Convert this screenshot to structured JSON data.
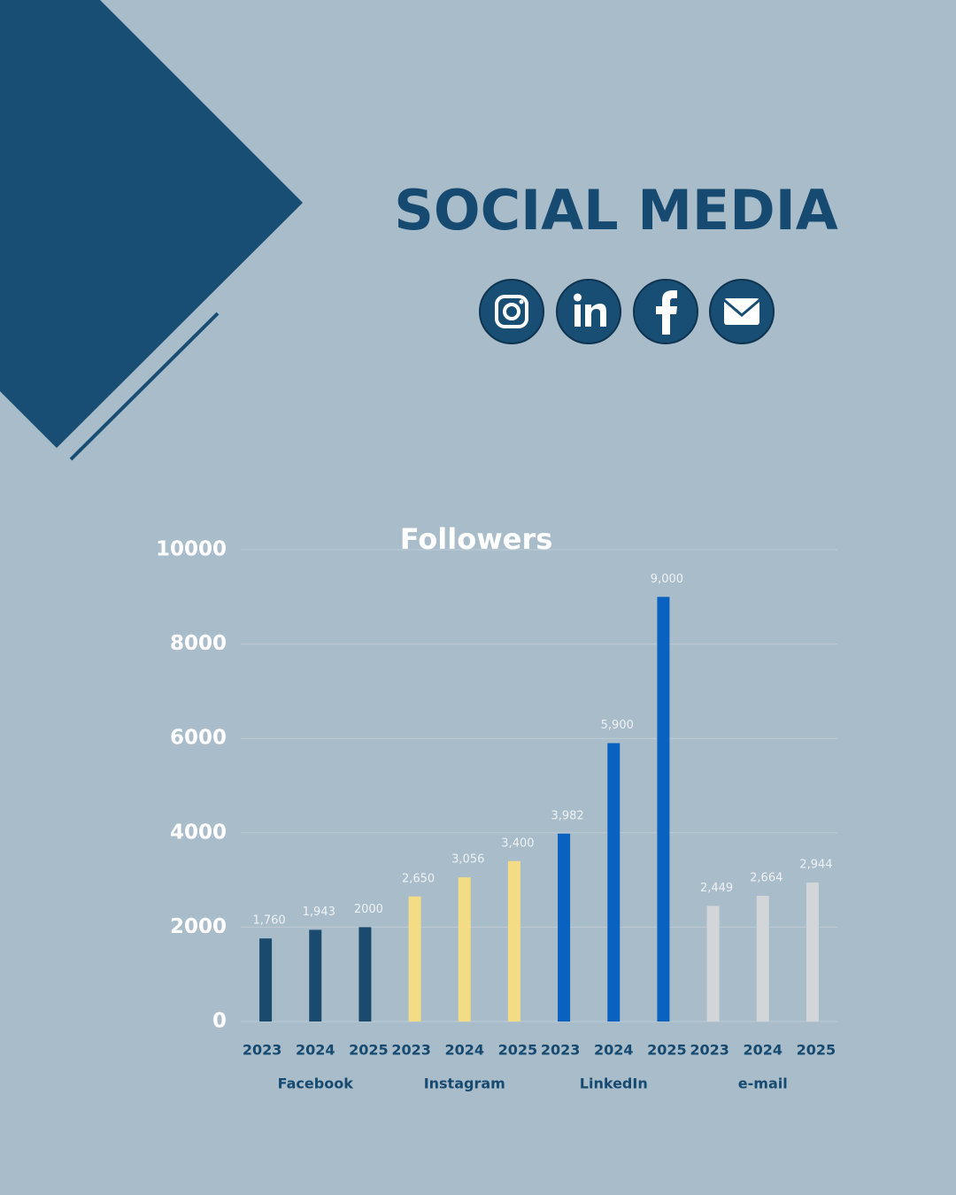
{
  "heading": "SOCIAL MEDIA",
  "chart_data": {
    "type": "bar",
    "title": "Followers",
    "ylim": [
      0,
      10000
    ],
    "yticks": [
      0,
      2000,
      4000,
      6000,
      8000,
      10000
    ],
    "grid": true,
    "groups": [
      {
        "name": "Facebook",
        "color": "#1a4a6e",
        "categories": [
          "2023",
          "2024",
          "2025"
        ],
        "values": [
          1760,
          1943,
          2000
        ],
        "value_labels": [
          "1,760",
          "1,943",
          "2000"
        ]
      },
      {
        "name": "Instagram",
        "color": "#f3dc84",
        "categories": [
          "2023",
          "2024",
          "2025"
        ],
        "values": [
          2650,
          3056,
          3400
        ],
        "value_labels": [
          "2,650",
          "3,056",
          "3,400"
        ]
      },
      {
        "name": "LinkedIn",
        "color": "#0a62c0",
        "categories": [
          "2023",
          "2024",
          "2025"
        ],
        "values": [
          3982,
          5900,
          9000
        ],
        "value_labels": [
          "3,982",
          "5,900",
          "9,000"
        ]
      },
      {
        "name": "e-mail",
        "color": "#d3d6d9",
        "categories": [
          "2023",
          "2024",
          "2025"
        ],
        "values": [
          2449,
          2664,
          2944
        ],
        "value_labels": [
          "2,449",
          "2,664",
          "2,944"
        ]
      }
    ]
  }
}
